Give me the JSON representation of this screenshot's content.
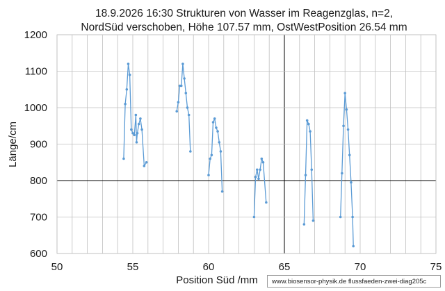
{
  "chart_data": {
    "type": "scatter",
    "title_lines": [
      "18.9.2026 16:30 Strukturen von Wasser im Reagenzglas, n=2,",
      "NordSüd verschoben, Höhe 107.57 mm, OstWestPosition 26.54 mm"
    ],
    "xlabel": "Position Süd /mm",
    "ylabel": "Länge/cm",
    "xlim": [
      50,
      75
    ],
    "ylim": [
      600,
      1200
    ],
    "x_ticks": [
      50,
      55,
      60,
      65,
      70,
      75
    ],
    "y_ticks": [
      600,
      700,
      800,
      900,
      1000,
      1100,
      1200
    ],
    "x_minor_step": 1,
    "y_minor_step": 100,
    "major_gridline_x": 65,
    "major_gridline_y": 800,
    "grid": true,
    "line_color": "#5b9bd5",
    "series": [
      {
        "points": [
          [
            54.4,
            860
          ],
          [
            54.5,
            1010
          ],
          [
            54.6,
            1050
          ],
          [
            54.7,
            1120
          ],
          [
            54.8,
            1090
          ],
          [
            54.9,
            940
          ],
          [
            55.0,
            930
          ],
          [
            55.1,
            925
          ],
          [
            55.2,
            980
          ],
          [
            55.25,
            905
          ],
          [
            55.3,
            930
          ],
          [
            55.4,
            955
          ],
          [
            55.5,
            970
          ],
          [
            55.6,
            940
          ],
          [
            55.75,
            840
          ],
          [
            55.9,
            850
          ]
        ]
      },
      {
        "points": [
          [
            57.9,
            990
          ],
          [
            58.0,
            1015
          ],
          [
            58.1,
            1060
          ],
          [
            58.2,
            1060
          ],
          [
            58.3,
            1120
          ],
          [
            58.4,
            1080
          ],
          [
            58.5,
            1040
          ],
          [
            58.6,
            1000
          ],
          [
            58.7,
            980
          ],
          [
            58.8,
            880
          ]
        ]
      },
      {
        "points": [
          [
            60.0,
            815
          ],
          [
            60.1,
            860
          ],
          [
            60.2,
            870
          ],
          [
            60.3,
            960
          ],
          [
            60.4,
            970
          ],
          [
            60.5,
            945
          ],
          [
            60.6,
            935
          ],
          [
            60.7,
            905
          ],
          [
            60.8,
            880
          ],
          [
            60.9,
            770
          ]
        ]
      },
      {
        "points": [
          [
            63.0,
            700
          ],
          [
            63.1,
            810
          ],
          [
            63.2,
            830
          ],
          [
            63.3,
            805
          ],
          [
            63.4,
            830
          ],
          [
            63.5,
            860
          ],
          [
            63.6,
            850
          ],
          [
            63.8,
            740
          ]
        ]
      },
      {
        "points": [
          [
            66.3,
            680
          ],
          [
            66.4,
            815
          ],
          [
            66.5,
            965
          ],
          [
            66.6,
            955
          ],
          [
            66.7,
            935
          ],
          [
            66.8,
            830
          ],
          [
            66.9,
            690
          ]
        ]
      },
      {
        "points": [
          [
            68.7,
            700
          ],
          [
            68.8,
            820
          ],
          [
            68.9,
            950
          ],
          [
            69.0,
            1040
          ],
          [
            69.1,
            995
          ],
          [
            69.2,
            940
          ],
          [
            69.3,
            870
          ],
          [
            69.4,
            795
          ],
          [
            69.5,
            700
          ],
          [
            69.55,
            620
          ]
        ]
      }
    ]
  },
  "footer": {
    "source_text": "www.biosensor-physik.de  flussfaeden-zwei-diag205c"
  }
}
